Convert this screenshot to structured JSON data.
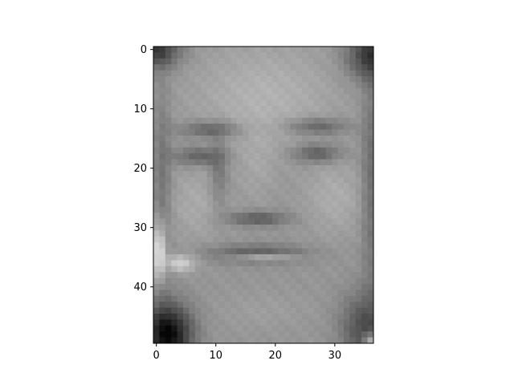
{
  "chart_data": {
    "type": "heatmap",
    "colormap": "gray",
    "title": "",
    "xlabel": "",
    "ylabel": "",
    "grid": false,
    "legend": "none",
    "nrows": 50,
    "ncols": 37,
    "xlim": [
      -0.5,
      36.5
    ],
    "ylim": [
      49.5,
      -0.5
    ],
    "x_ticks": [
      0,
      10,
      20,
      30
    ],
    "y_ticks": [
      0,
      10,
      20,
      30,
      40
    ],
    "x_tick_labels": [
      "0",
      "10",
      "20",
      "30"
    ],
    "y_tick_labels": [
      "0",
      "10",
      "20",
      "30",
      "40"
    ],
    "value_range": [
      0,
      255
    ],
    "content": "grayscale photograph of a smiling man's face"
  },
  "colors": {
    "axis": "#000000",
    "background": "#ffffff"
  }
}
